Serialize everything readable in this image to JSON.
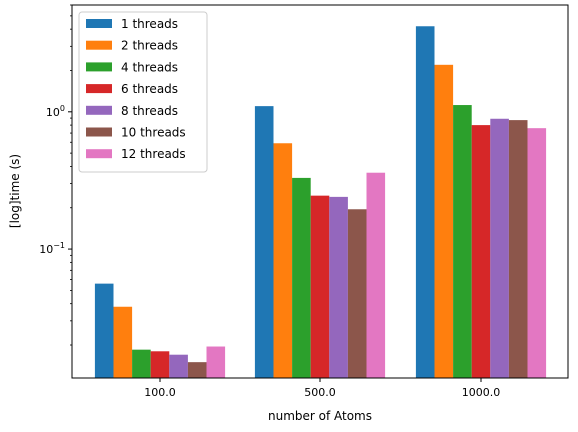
{
  "chart_data": {
    "type": "bar",
    "title": "",
    "xlabel": "number of Atoms",
    "ylabel": "[log]time (s)",
    "yscale": "log",
    "ylim": [
      0.0115,
      6.0
    ],
    "y_major_ticks": [
      {
        "value": 0.1,
        "base": "10",
        "exp": "−1"
      },
      {
        "value": 1,
        "base": "10",
        "exp": "0"
      }
    ],
    "categories": [
      "100.0",
      "500.0",
      "1000.0"
    ],
    "legend_position": "upper-left",
    "series": [
      {
        "name": "1 threads",
        "color": "#1f77b4",
        "values": [
          0.056,
          1.1,
          4.2
        ]
      },
      {
        "name": "2 threads",
        "color": "#ff7f0e",
        "values": [
          0.038,
          0.59,
          2.2
        ]
      },
      {
        "name": "4 threads",
        "color": "#2ca02c",
        "values": [
          0.0185,
          0.33,
          1.12
        ]
      },
      {
        "name": "6 threads",
        "color": "#d62728",
        "values": [
          0.018,
          0.245,
          0.8
        ]
      },
      {
        "name": "8 threads",
        "color": "#9467bd",
        "values": [
          0.017,
          0.24,
          0.89
        ]
      },
      {
        "name": "10 threads",
        "color": "#8c564b",
        "values": [
          0.015,
          0.195,
          0.87
        ]
      },
      {
        "name": "12 threads",
        "color": "#e377c2",
        "values": [
          0.0195,
          0.36,
          0.76
        ]
      }
    ]
  }
}
